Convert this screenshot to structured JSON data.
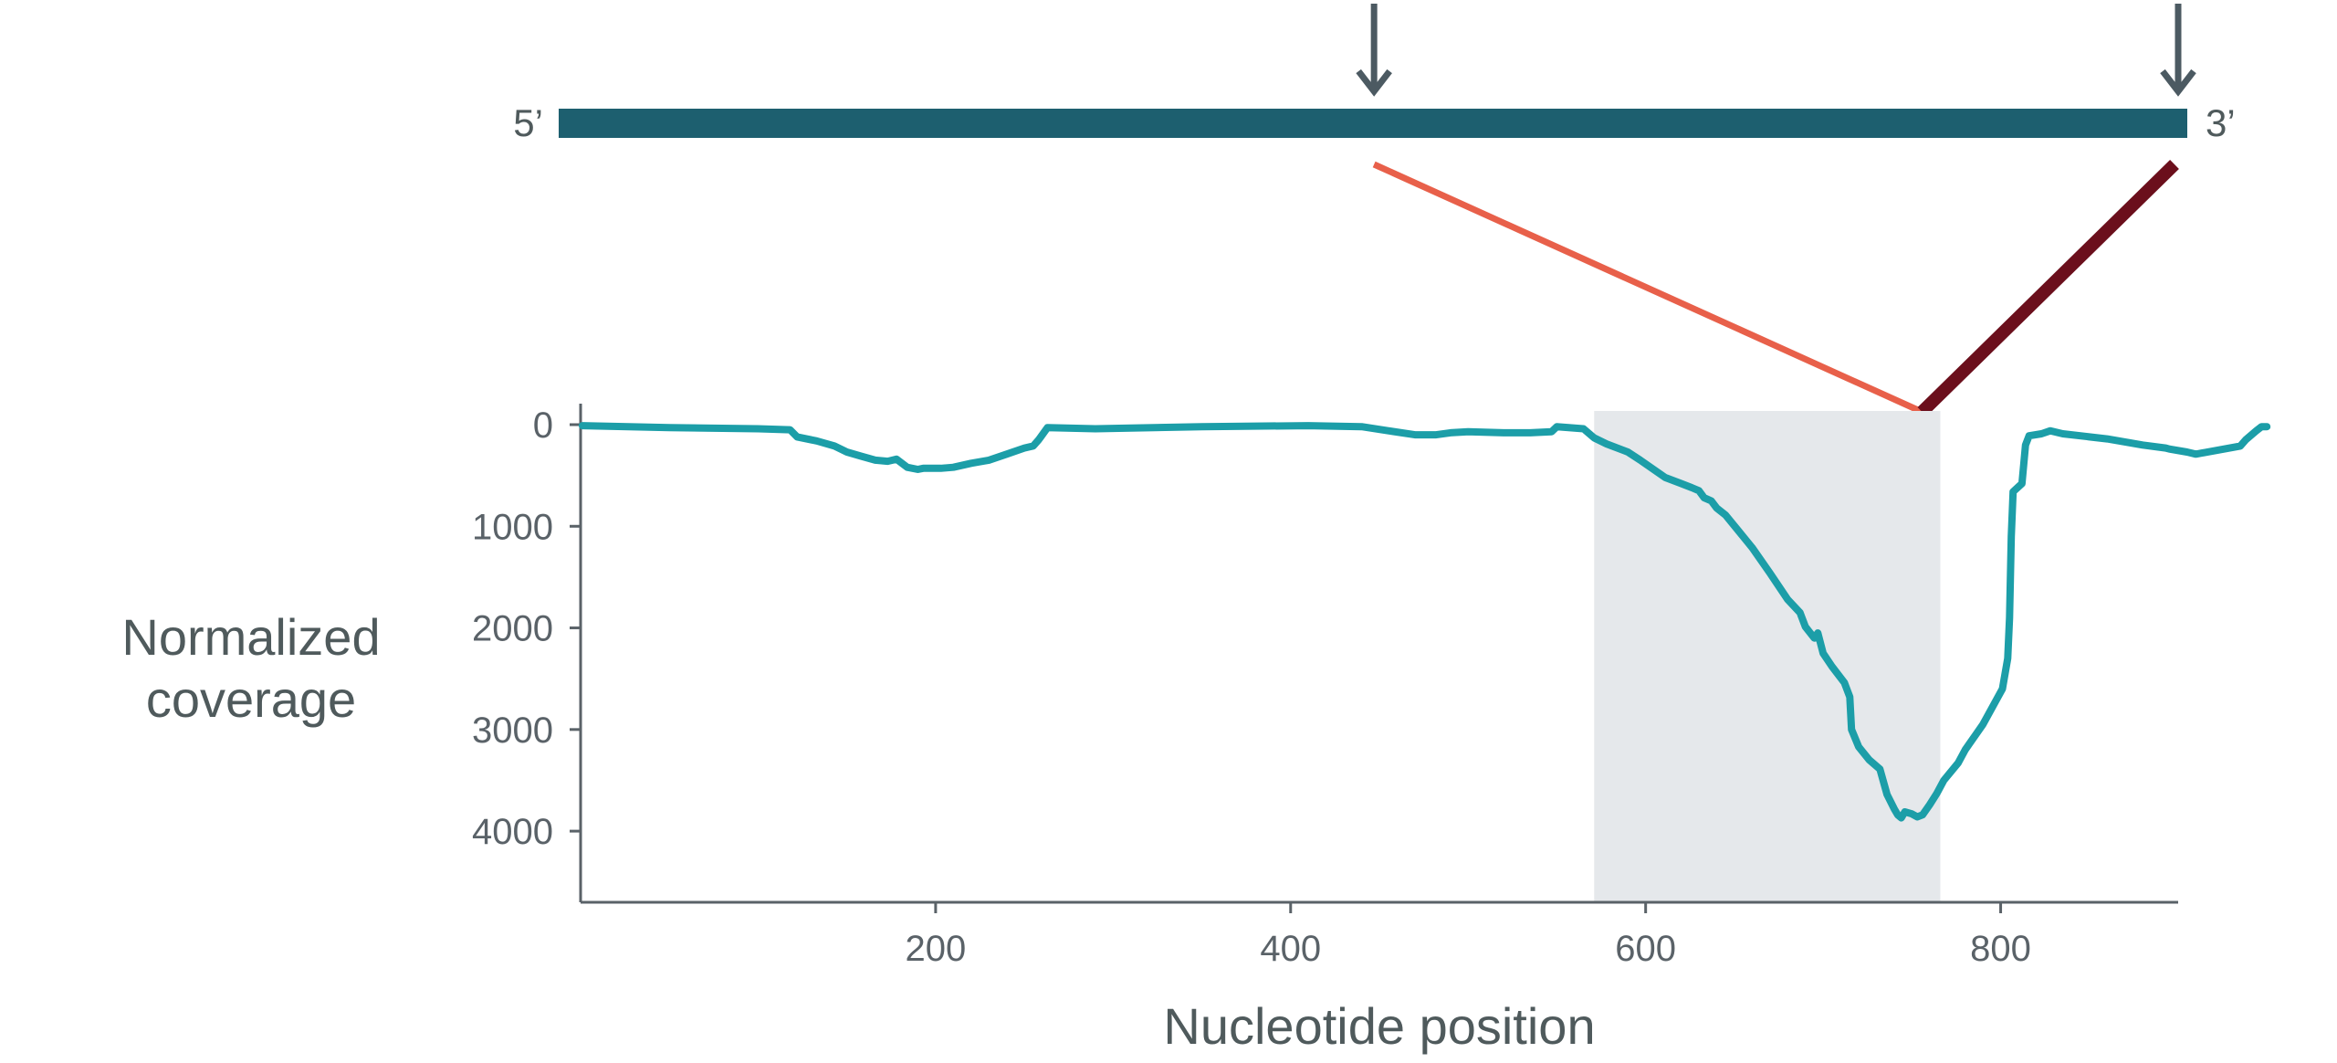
{
  "chart_data": {
    "type": "line",
    "xlabel": "Nucleotide position",
    "ylabel_lines": [
      "Normalized",
      "coverage"
    ],
    "x_ticks": [
      200,
      400,
      600,
      800
    ],
    "y_ticks": [
      0,
      1000,
      2000,
      3000,
      4000
    ],
    "xlim": [
      0,
      900
    ],
    "ylim": [
      0,
      4700
    ],
    "y_inverted": true,
    "highlight_region": [
      571,
      766
    ],
    "strand": {
      "five_prime_label": "5’",
      "three_prime_label": "3’"
    },
    "markers": [
      {
        "x": 447
      },
      {
        "x": 900
      }
    ],
    "series": [
      {
        "values": [
          [
            1,
            10
          ],
          [
            50,
            30
          ],
          [
            100,
            40
          ],
          [
            118,
            50
          ],
          [
            122,
            120
          ],
          [
            133,
            160
          ],
          [
            143,
            210
          ],
          [
            150,
            270
          ],
          [
            158,
            310
          ],
          [
            166,
            350
          ],
          [
            173,
            360
          ],
          [
            178,
            340
          ],
          [
            184,
            420
          ],
          [
            190,
            440
          ],
          [
            193,
            430
          ],
          [
            198,
            430
          ],
          [
            203,
            430
          ],
          [
            210,
            420
          ],
          [
            220,
            380
          ],
          [
            230,
            350
          ],
          [
            240,
            290
          ],
          [
            250,
            230
          ],
          [
            255,
            210
          ],
          [
            258,
            150
          ],
          [
            263,
            30
          ],
          [
            290,
            40
          ],
          [
            350,
            20
          ],
          [
            410,
            10
          ],
          [
            440,
            20
          ],
          [
            455,
            60
          ],
          [
            470,
            100
          ],
          [
            482,
            100
          ],
          [
            490,
            80
          ],
          [
            500,
            70
          ],
          [
            520,
            80
          ],
          [
            535,
            80
          ],
          [
            547,
            70
          ],
          [
            550,
            20
          ],
          [
            565,
            40
          ],
          [
            571,
            130
          ],
          [
            578,
            190
          ],
          [
            590,
            270
          ],
          [
            597,
            350
          ],
          [
            611,
            520
          ],
          [
            620,
            580
          ],
          [
            626,
            620
          ],
          [
            630,
            650
          ],
          [
            633,
            720
          ],
          [
            637,
            750
          ],
          [
            640,
            820
          ],
          [
            645,
            890
          ],
          [
            660,
            1210
          ],
          [
            670,
            1460
          ],
          [
            680,
            1720
          ],
          [
            687,
            1850
          ],
          [
            690,
            1990
          ],
          [
            695,
            2100
          ],
          [
            697,
            2050
          ],
          [
            700,
            2250
          ],
          [
            705,
            2380
          ],
          [
            712,
            2540
          ],
          [
            715,
            2680
          ],
          [
            716,
            3000
          ],
          [
            720,
            3170
          ],
          [
            726,
            3300
          ],
          [
            732,
            3390
          ],
          [
            736,
            3640
          ],
          [
            740,
            3780
          ],
          [
            742,
            3840
          ],
          [
            744,
            3870
          ],
          [
            746,
            3810
          ],
          [
            750,
            3830
          ],
          [
            753,
            3860
          ],
          [
            756,
            3840
          ],
          [
            760,
            3740
          ],
          [
            764,
            3630
          ],
          [
            768,
            3500
          ],
          [
            776,
            3330
          ],
          [
            780,
            3200
          ],
          [
            790,
            2950
          ],
          [
            801,
            2600
          ],
          [
            804,
            2300
          ],
          [
            805,
            1900
          ],
          [
            806,
            1100
          ],
          [
            807,
            660
          ],
          [
            812,
            580
          ],
          [
            814,
            200
          ],
          [
            816,
            110
          ],
          [
            823,
            90
          ],
          [
            828,
            60
          ],
          [
            835,
            90
          ],
          [
            860,
            140
          ],
          [
            870,
            170
          ],
          [
            880,
            200
          ],
          [
            893,
            230
          ],
          [
            895,
            240
          ],
          [
            905,
            270
          ],
          [
            910,
            290
          ],
          [
            935,
            210
          ],
          [
            938,
            150
          ],
          [
            944,
            60
          ],
          [
            947,
            20
          ],
          [
            950,
            20
          ]
        ]
      }
    ]
  }
}
